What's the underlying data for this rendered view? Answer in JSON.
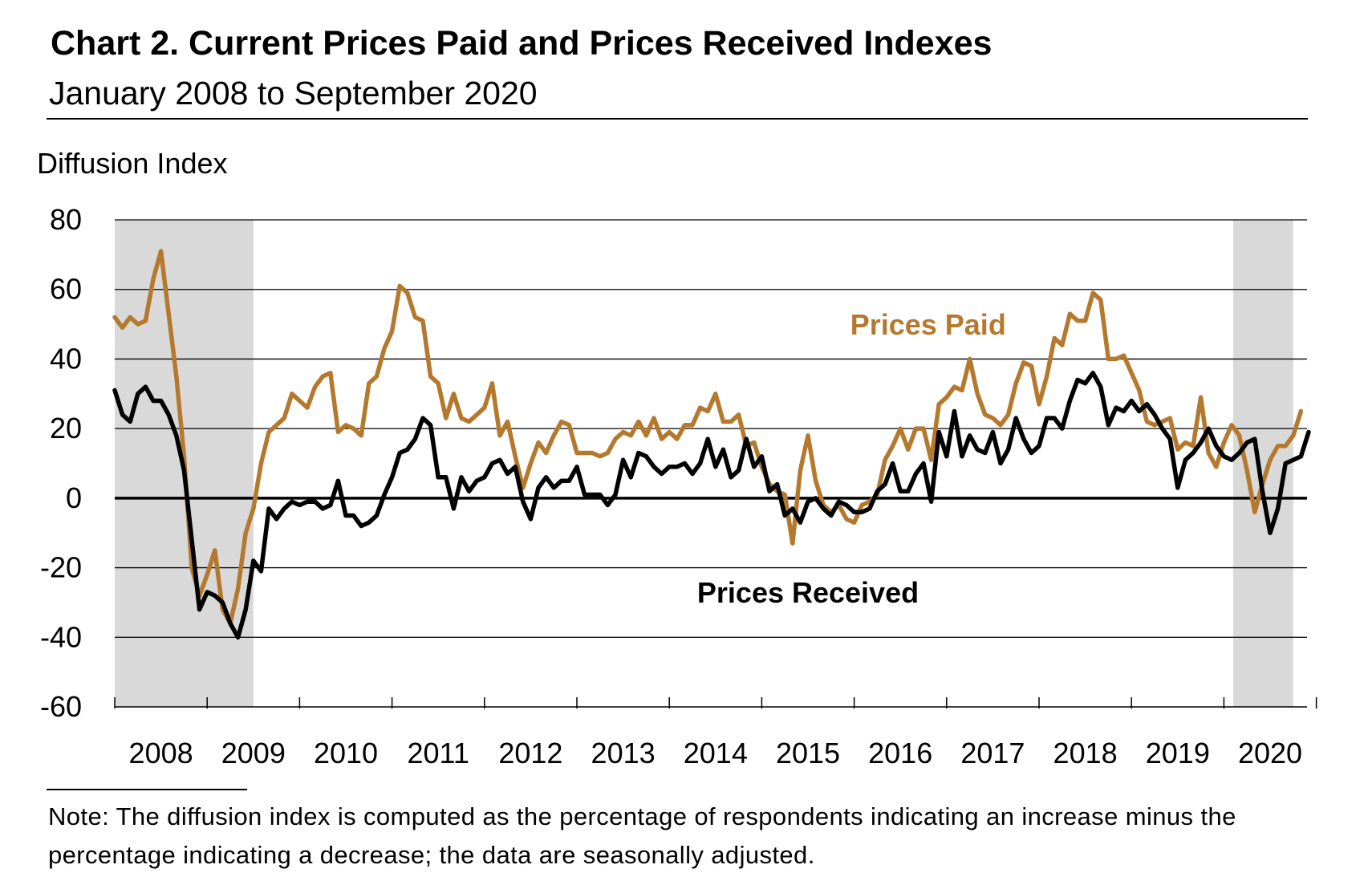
{
  "title": "Chart 2. Current Prices Paid and Prices Received Indexes",
  "subtitle": "January 2008 to September 2020",
  "note": "Note: The diffusion index is computed as the percentage of respondents indicating an increase minus the percentage indicating a decrease; the data are seasonally adjusted.",
  "colors": {
    "prices_paid": "#B5792E",
    "prices_received": "#000000",
    "recession": "#D9D9D9",
    "grid": "#000000"
  },
  "chart_data": {
    "type": "line",
    "title": "Chart 2. Current Prices Paid and Prices Received Indexes",
    "subtitle": "January 2008 to September 2020",
    "ylabel": "Diffusion Index",
    "xlabel": "",
    "ylim": [
      -60,
      80
    ],
    "yticks": [
      80,
      60,
      40,
      20,
      0,
      -20,
      -40,
      -60
    ],
    "ytick_labels": [
      "80",
      "60",
      "40",
      "20",
      "0",
      "-20",
      "-40",
      "-60"
    ],
    "xlim_years": [
      2008,
      2021
    ],
    "x_tick_labels": [
      "2008",
      "2009",
      "2010",
      "2011",
      "2012",
      "2013",
      "2014",
      "2015",
      "2016",
      "2017",
      "2018",
      "2019",
      "2020"
    ],
    "grid": true,
    "start": "2008-01",
    "frequency": "monthly",
    "shaded_periods": [
      {
        "label": "recession",
        "start_year": 2008.0,
        "end_year": 2009.5
      },
      {
        "label": "recession",
        "start_year": 2020.1,
        "end_year": 2020.75
      }
    ],
    "series": [
      {
        "name": "Prices Paid",
        "label": "Prices Paid",
        "color": "#B5792E",
        "values": [
          52,
          49,
          52,
          50,
          51,
          63,
          71,
          53,
          35,
          12,
          -20,
          -28,
          -22,
          -15,
          -32,
          -36,
          -26,
          -10,
          -3,
          10,
          19,
          21,
          23,
          30,
          28,
          26,
          32,
          35,
          36,
          19,
          21,
          20,
          18,
          33,
          35,
          43,
          48,
          61,
          59,
          52,
          51,
          35,
          33,
          23,
          30,
          23,
          22,
          24,
          26,
          33,
          18,
          22,
          12,
          3,
          10,
          16,
          13,
          18,
          22,
          21,
          13,
          13,
          13,
          12,
          13,
          17,
          19,
          18,
          22,
          18,
          23,
          17,
          19,
          17,
          21,
          21,
          26,
          25,
          30,
          22,
          22,
          24,
          15,
          16,
          9,
          4,
          2,
          1,
          -13,
          8,
          18,
          5,
          -2,
          -4,
          -2,
          -6,
          -7,
          -2,
          -1,
          1,
          11,
          15,
          20,
          14,
          20,
          20,
          11,
          27,
          29,
          32,
          31,
          40,
          30,
          24,
          23,
          21,
          24,
          33,
          39,
          38,
          27,
          35,
          46,
          44,
          53,
          51,
          51,
          59,
          57,
          40,
          40,
          41,
          36,
          31,
          22,
          21,
          22,
          23,
          14,
          16,
          15,
          29,
          13,
          9,
          16,
          21,
          18,
          8,
          -4,
          4,
          11,
          15,
          15,
          18,
          25
        ]
      },
      {
        "name": "Prices Received",
        "label": "Prices Received",
        "color": "#000000",
        "values": [
          31,
          24,
          22,
          30,
          32,
          28,
          28,
          24,
          18,
          8,
          -12,
          -32,
          -27,
          -28,
          -30,
          -36,
          -40,
          -32,
          -18,
          -21,
          -3,
          -6,
          -3,
          -1,
          -2,
          -1,
          -1,
          -3,
          -2,
          5,
          -5,
          -5,
          -8,
          -7,
          -5,
          1,
          6,
          13,
          14,
          17,
          23,
          21,
          6,
          6,
          -3,
          6,
          2,
          5,
          6,
          10,
          11,
          7,
          9,
          -1,
          -6,
          3,
          6,
          3,
          5,
          5,
          9,
          1,
          1,
          1,
          -2,
          1,
          11,
          6,
          13,
          12,
          9,
          7,
          9,
          9,
          10,
          7,
          10,
          17,
          9,
          14,
          6,
          8,
          17,
          9,
          12,
          2,
          4,
          -5,
          -3,
          -7,
          -1,
          0,
          -3,
          -5,
          -1,
          -2,
          -4,
          -4,
          -3,
          2,
          4,
          10,
          2,
          2,
          7,
          10,
          -1,
          19,
          12,
          25,
          12,
          18,
          14,
          13,
          19,
          10,
          14,
          23,
          17,
          13,
          15,
          23,
          23,
          20,
          28,
          34,
          33,
          36,
          32,
          21,
          26,
          25,
          28,
          25,
          27,
          24,
          20,
          17,
          3,
          11,
          13,
          16,
          20,
          15,
          12,
          11,
          13,
          16,
          17,
          2,
          -10,
          -3,
          10,
          11,
          12,
          19
        ]
      }
    ],
    "annotations": [
      {
        "text": "Prices Paid",
        "color": "#B5792E",
        "near_year": 2016.8,
        "near_value": 47
      },
      {
        "text": "Prices Received",
        "color": "#000000",
        "near_year": 2015.5,
        "near_value": -30
      }
    ]
  }
}
